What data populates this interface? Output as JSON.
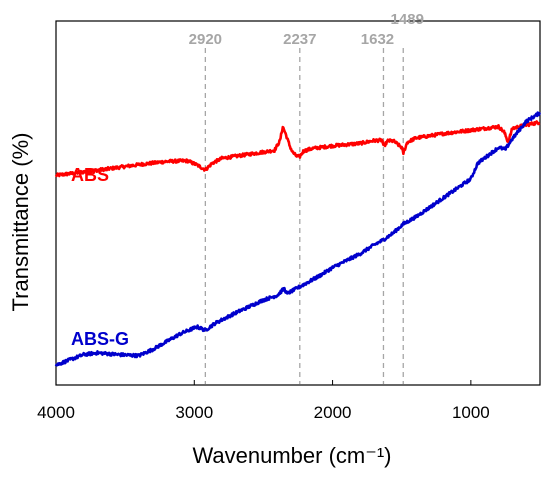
{
  "chart_data": {
    "type": "line",
    "xlabel": "Wavenumber (cm⁻¹)",
    "ylabel": "Transmittance (%)",
    "xlim": [
      4000,
      500
    ],
    "x_reversed": true,
    "ylim": [
      0,
      100
    ],
    "y_ticks_shown": false,
    "x_ticks": [
      4000,
      3000,
      2000,
      1000
    ],
    "x_tick_labels": [
      "4000",
      "3000",
      "2000",
      "1000"
    ],
    "grid": false,
    "peak_markers": [
      {
        "x": 2920,
        "label": "2920"
      },
      {
        "x": 2237,
        "label": "2237"
      },
      {
        "x": 1632,
        "label": "1632"
      },
      {
        "x": 1489,
        "label": "1489"
      }
    ],
    "series": [
      {
        "name": "ABS",
        "color": "#ff0000",
        "points": [
          [
            4000,
            56.5
          ],
          [
            3800,
            57.5
          ],
          [
            3600,
            58.5
          ],
          [
            3400,
            59.6
          ],
          [
            3200,
            60.5
          ],
          [
            3050,
            60.7
          ],
          [
            2980,
            59.5
          ],
          [
            2920,
            58.1
          ],
          [
            2870,
            60
          ],
          [
            2800,
            61.4
          ],
          [
            2600,
            62.6
          ],
          [
            2420,
            63.7
          ],
          [
            2380,
            66.5
          ],
          [
            2360,
            70.5
          ],
          [
            2340,
            68.5
          ],
          [
            2310,
            65
          ],
          [
            2290,
            63.2
          ],
          [
            2260,
            62
          ],
          [
            2237,
            61.9
          ],
          [
            2210,
            63.5
          ],
          [
            2150,
            64.2
          ],
          [
            2000,
            65
          ],
          [
            1800,
            65.7
          ],
          [
            1700,
            66.5
          ],
          [
            1640,
            66.6
          ],
          [
            1632,
            64.8
          ],
          [
            1600,
            66.4
          ],
          [
            1560,
            66.4
          ],
          [
            1500,
            64.5
          ],
          [
            1489,
            62.8
          ],
          [
            1460,
            66
          ],
          [
            1400,
            67.2
          ],
          [
            1200,
            68.5
          ],
          [
            1000,
            69.5
          ],
          [
            800,
            70.5
          ],
          [
            760,
            69
          ],
          [
            730,
            66
          ],
          [
            700,
            70
          ],
          [
            600,
            71
          ],
          [
            500,
            71.8
          ]
        ]
      },
      {
        "name": "ABS-G",
        "color": "#0000cc",
        "points": [
          [
            4000,
            2
          ],
          [
            3800,
            5
          ],
          [
            3700,
            5.5
          ],
          [
            3550,
            5
          ],
          [
            3400,
            4.7
          ],
          [
            3300,
            6.5
          ],
          [
            3100,
            11
          ],
          [
            2980,
            13
          ],
          [
            2920,
            12
          ],
          [
            2850,
            14
          ],
          [
            2700,
            17
          ],
          [
            2500,
            20.7
          ],
          [
            2400,
            22
          ],
          [
            2350,
            24
          ],
          [
            2330,
            22.5
          ],
          [
            2237,
            24.5
          ],
          [
            2100,
            27.5
          ],
          [
            2000,
            30
          ],
          [
            1800,
            34
          ],
          [
            1700,
            36.5
          ],
          [
            1632,
            38
          ],
          [
            1560,
            40
          ],
          [
            1489,
            42.5
          ],
          [
            1400,
            44.5
          ],
          [
            1200,
            50
          ],
          [
            1000,
            55.5
          ],
          [
            950,
            60
          ],
          [
            850,
            63
          ],
          [
            800,
            64.5
          ],
          [
            750,
            64
          ],
          [
            700,
            67
          ],
          [
            600,
            72
          ],
          [
            500,
            74.5
          ]
        ]
      }
    ],
    "series_labels": [
      {
        "text": "ABS",
        "color": "#ff0000"
      },
      {
        "text": "ABS-G",
        "color": "#0000cc"
      }
    ]
  }
}
